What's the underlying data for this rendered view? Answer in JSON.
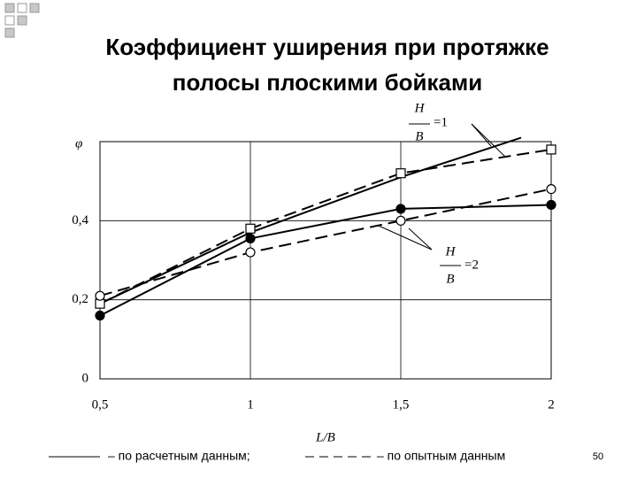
{
  "slide": {
    "title": [
      "Коэффициент уширения при протяжке",
      "полосы плоскими бойками"
    ],
    "page_number": "50"
  },
  "chart_data": {
    "type": "line",
    "xlabel": "L/B",
    "ylabel": "φ",
    "xlim": [
      0.5,
      2
    ],
    "xticks": [
      {
        "value": 0.5,
        "label": "0,5"
      },
      1,
      {
        "value": 1.5,
        "label": "1,5"
      },
      2
    ],
    "ylim": [
      0,
      0.6
    ],
    "yticks": [
      0,
      {
        "value": 0.2,
        "label": "0,2"
      },
      {
        "value": 0.4,
        "label": "0,4"
      }
    ],
    "grid": true,
    "series": [
      {
        "x": [
          0.5,
          1,
          1.5,
          1.9
        ],
        "values": [
          0.19,
          0.37,
          0.51,
          0.61
        ],
        "style": "solid",
        "marker": "none",
        "color": "#000000"
      },
      {
        "x": [
          0.5,
          1,
          1.5,
          2
        ],
        "values": [
          0.16,
          0.355,
          0.43,
          0.44
        ],
        "style": "solid",
        "marker": "filled-circle",
        "color": "#000000"
      },
      {
        "x": [
          0.5,
          1,
          1.5,
          2
        ],
        "values": [
          0.19,
          0.38,
          0.52,
          0.58
        ],
        "style": "dashed",
        "marker": "open-square",
        "color": "#000000"
      },
      {
        "x": [
          0.5,
          1,
          1.5,
          2
        ],
        "values": [
          0.21,
          0.32,
          0.4,
          0.48
        ],
        "style": "dashed",
        "marker": "open-circle",
        "color": "#000000"
      }
    ],
    "annotations": [
      {
        "numerator": "H",
        "denominator": "B",
        "rhs": "=1"
      },
      {
        "numerator": "H",
        "denominator": "B",
        "rhs": "=2"
      }
    ],
    "legend": [
      {
        "style": "solid",
        "label": "– по расчетным данным;"
      },
      {
        "style": "dashed",
        "label": "– по опытным данным"
      }
    ]
  }
}
